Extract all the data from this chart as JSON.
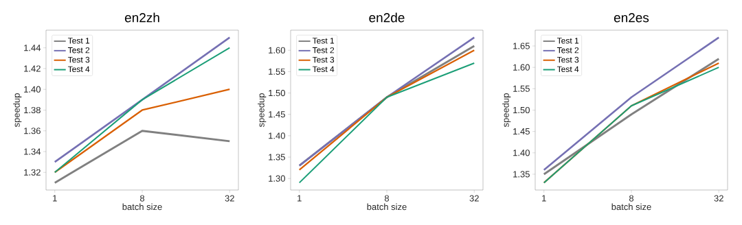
{
  "chart_data": [
    {
      "type": "line",
      "title": "en2zh",
      "xlabel": "batch size",
      "ylabel": "speedup",
      "categories": [
        "1",
        "8",
        "32"
      ],
      "ylim": [
        1.303,
        1.457
      ],
      "yticks": [
        1.32,
        1.34,
        1.36,
        1.38,
        {
          "value": 1.4,
          "label": "1.40"
        },
        1.42,
        1.44
      ],
      "legend": "top left",
      "series": [
        {
          "name": "Test 1",
          "color": "#808080",
          "values": [
            1.31,
            1.36,
            1.35
          ]
        },
        {
          "name": "Test 2",
          "color": "#7570b3",
          "values": [
            1.33,
            1.39,
            1.45
          ]
        },
        {
          "name": "Test 3",
          "color": "#d95f02",
          "values": [
            1.32,
            1.38,
            1.4
          ]
        },
        {
          "name": "Test 4",
          "color": "#1b9e77",
          "values": [
            1.32,
            1.39,
            1.44
          ]
        }
      ]
    },
    {
      "type": "line",
      "title": "en2de",
      "xlabel": "batch size",
      "ylabel": "speedup",
      "categories": [
        "1",
        "8",
        "32"
      ],
      "ylim": [
        1.273,
        1.647
      ],
      "yticks": [
        {
          "value": 1.3,
          "label": "1.30"
        },
        1.35,
        {
          "value": 1.4,
          "label": "1.40"
        },
        1.45,
        {
          "value": 1.5,
          "label": "1.50"
        },
        1.55,
        {
          "value": 1.6,
          "label": "1.60"
        }
      ],
      "legend": "top left",
      "series": [
        {
          "name": "Test 1",
          "color": "#808080",
          "values": [
            1.33,
            1.49,
            1.61
          ]
        },
        {
          "name": "Test 2",
          "color": "#7570b3",
          "values": [
            1.33,
            1.49,
            1.63
          ]
        },
        {
          "name": "Test 3",
          "color": "#d95f02",
          "values": [
            1.32,
            1.49,
            1.6
          ]
        },
        {
          "name": "Test 4",
          "color": "#1b9e77",
          "values": [
            1.29,
            1.49,
            1.57
          ]
        }
      ]
    },
    {
      "type": "line",
      "title": "en2es",
      "xlabel": "batch size",
      "ylabel": "speedup",
      "categories": [
        "1",
        "8",
        "32"
      ],
      "ylim": [
        1.313,
        1.687
      ],
      "yticks": [
        1.35,
        {
          "value": 1.4,
          "label": "1.40"
        },
        1.45,
        {
          "value": 1.5,
          "label": "1.50"
        },
        1.55,
        {
          "value": 1.6,
          "label": "1.60"
        },
        1.65
      ],
      "legend": "top left",
      "series": [
        {
          "name": "Test 1",
          "color": "#808080",
          "values": [
            1.35,
            1.49,
            1.62
          ]
        },
        {
          "name": "Test 2",
          "color": "#7570b3",
          "values": [
            1.36,
            1.53,
            1.67
          ]
        },
        {
          "name": "Test 3",
          "color": "#d95f02",
          "values": [
            1.33,
            1.51,
            1.61
          ]
        },
        {
          "name": "Test 4",
          "color": "#1b9e77",
          "values": [
            1.33,
            1.51,
            1.6
          ]
        }
      ]
    }
  ]
}
